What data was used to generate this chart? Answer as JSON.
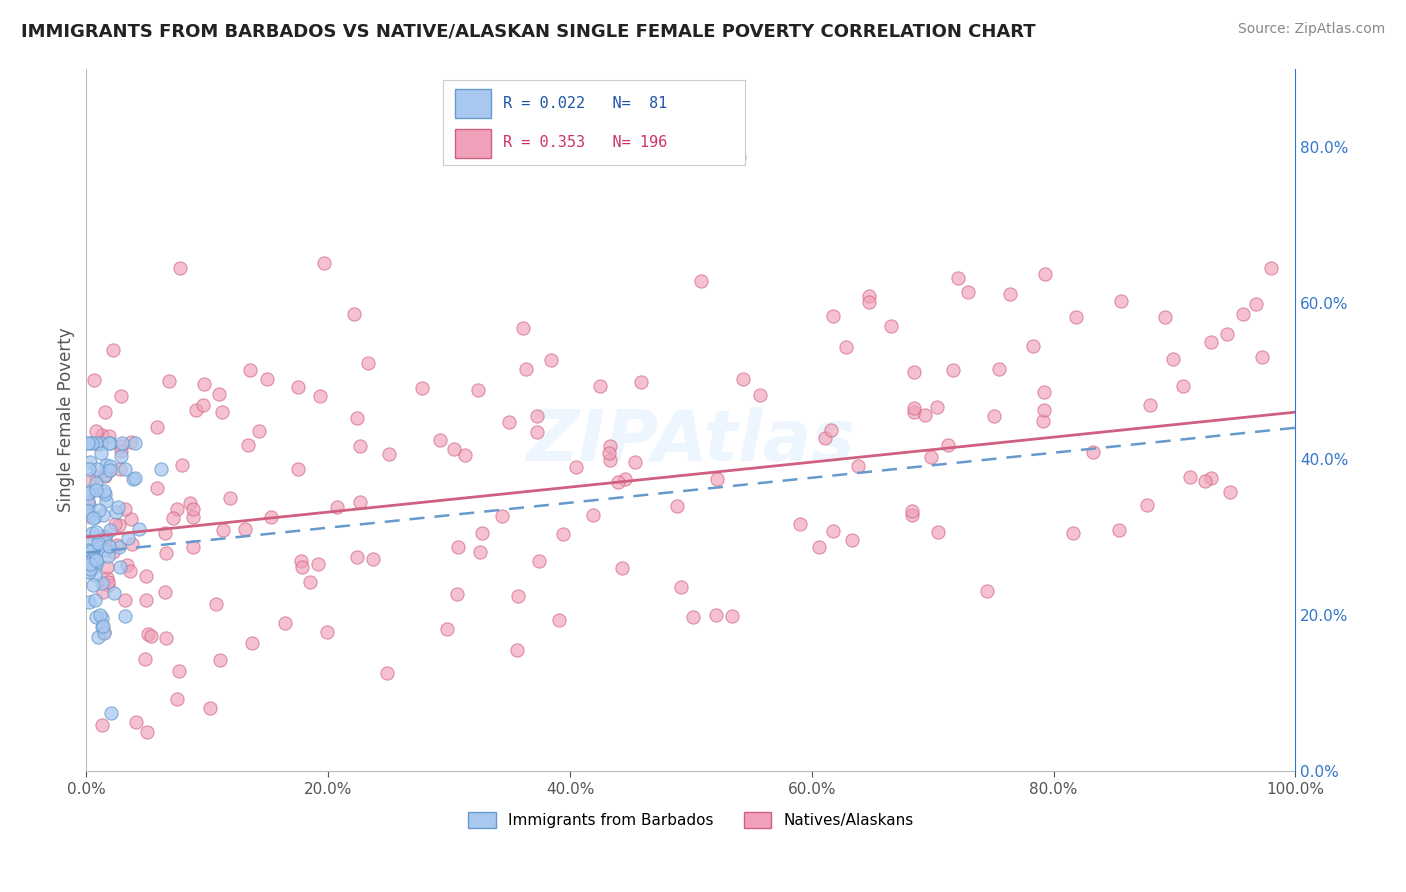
{
  "title": "IMMIGRANTS FROM BARBADOS VS NATIVE/ALASKAN SINGLE FEMALE POVERTY CORRELATION CHART",
  "source": "Source: ZipAtlas.com",
  "watermark": "ZIPAtlas",
  "ylabel": "Single Female Poverty",
  "legend_label_blue": "Immigrants from Barbados",
  "legend_label_pink": "Natives/Alaskans",
  "R_blue": 0.022,
  "N_blue": 81,
  "R_pink": 0.353,
  "N_pink": 196,
  "color_blue": "#A8C8F0",
  "color_pink": "#F0A0B8",
  "edge_blue": "#6699CC",
  "edge_pink": "#D06080",
  "line_blue_color": "#6699CC",
  "line_pink_color": "#D06080",
  "bg_color": "#FFFFFF",
  "grid_color": "#CCCCCC",
  "xlim": [
    0.0,
    1.0
  ],
  "ylim": [
    0.0,
    0.9
  ],
  "xticks": [
    0.0,
    0.2,
    0.4,
    0.6,
    0.8,
    1.0
  ],
  "yticks_right": [
    0.0,
    0.2,
    0.4,
    0.6,
    0.8
  ],
  "blue_trend_x0": 0.0,
  "blue_trend_y0": 0.28,
  "blue_trend_x1": 1.0,
  "blue_trend_y1": 0.44,
  "pink_trend_x0": 0.0,
  "pink_trend_y0": 0.3,
  "pink_trend_x1": 1.0,
  "pink_trend_y1": 0.46,
  "title_fontsize": 13,
  "source_fontsize": 10,
  "tick_fontsize": 11,
  "ylabel_fontsize": 12
}
